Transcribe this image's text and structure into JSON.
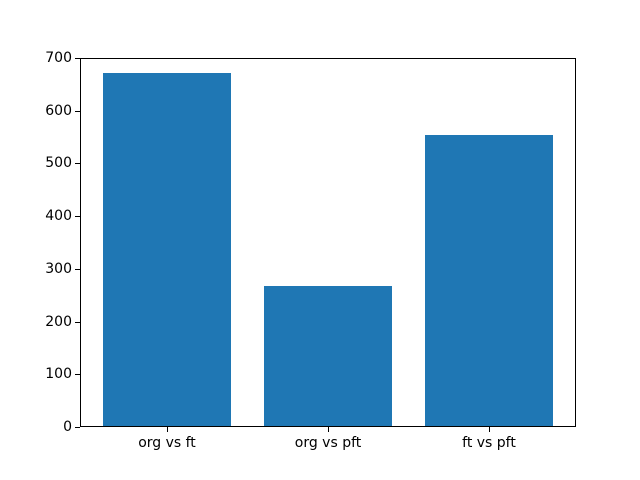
{
  "figure": {
    "background_color": "#ffffff",
    "text_color": "#000000",
    "title": ""
  },
  "chart_data": {
    "type": "bar",
    "categories": [
      "org vs ft",
      "org vs pft",
      "ft vs pft"
    ],
    "values": [
      670,
      265,
      552
    ],
    "title": "",
    "xlabel": "",
    "ylabel": "",
    "ylim": [
      0,
      700
    ],
    "yticks": [
      0,
      100,
      200,
      300,
      400,
      500,
      600,
      700
    ],
    "bar_color": "#1f77b4",
    "bar_width_fraction": 0.8,
    "x_margin_fraction": 0.05,
    "grid": false,
    "legend": "none"
  }
}
